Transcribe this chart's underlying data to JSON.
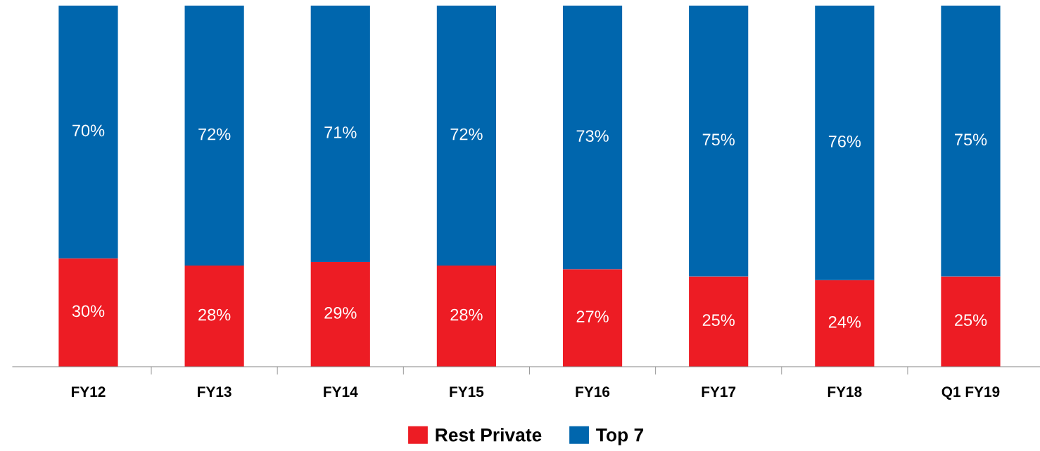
{
  "chart_data": {
    "type": "bar",
    "stacked": true,
    "categories": [
      "FY12",
      "FY13",
      "FY14",
      "FY15",
      "FY16",
      "FY17",
      "FY18",
      "Q1 FY19"
    ],
    "series": [
      {
        "name": "Rest Private",
        "color": "#ed1c24",
        "values": [
          30,
          28,
          29,
          28,
          27,
          25,
          24,
          25
        ],
        "value_labels": [
          "30%",
          "28%",
          "29%",
          "28%",
          "27%",
          "25%",
          "24%",
          "25%"
        ]
      },
      {
        "name": "Top 7",
        "color": "#0066ad",
        "values": [
          70,
          72,
          71,
          72,
          73,
          75,
          76,
          75
        ],
        "value_labels": [
          "70%",
          "72%",
          "71%",
          "72%",
          "73%",
          "75%",
          "76%",
          "75%"
        ]
      }
    ],
    "ylim": [
      0,
      100
    ],
    "tick_labels": "x",
    "grid": false,
    "legend": "bottom"
  }
}
